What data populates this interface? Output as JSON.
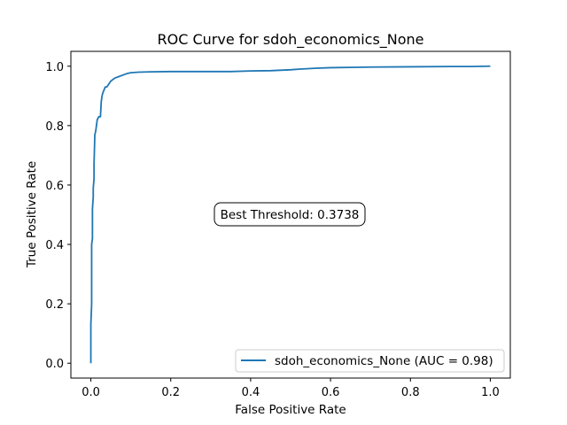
{
  "chart_data": {
    "type": "line",
    "title": "ROC Curve for sdoh_economics_None",
    "xlabel": "False Positive Rate",
    "ylabel": "True Positive Rate",
    "xlim": [
      -0.05,
      1.05
    ],
    "ylim": [
      -0.05,
      1.05
    ],
    "xticks": [
      0.0,
      0.2,
      0.4,
      0.6,
      0.8,
      1.0
    ],
    "yticks": [
      0.0,
      0.2,
      0.4,
      0.6,
      0.8,
      1.0
    ],
    "xtick_labels": [
      "0.0",
      "0.2",
      "0.4",
      "0.6",
      "0.8",
      "1.0"
    ],
    "ytick_labels": [
      "0.0",
      "0.2",
      "0.4",
      "0.6",
      "0.8",
      "1.0"
    ],
    "grid": false,
    "legend_position": "lower-right",
    "colors": {
      "series": "#1f77b4"
    },
    "series": [
      {
        "name": "sdoh_economics_None (AUC = 0.98)",
        "x": [
          0.0,
          0.0,
          0.002,
          0.002,
          0.004,
          0.004,
          0.006,
          0.006,
          0.008,
          0.008,
          0.01,
          0.012,
          0.014,
          0.016,
          0.02,
          0.024,
          0.026,
          0.028,
          0.03,
          0.033,
          0.036,
          0.04,
          0.045,
          0.05,
          0.06,
          0.07,
          0.08,
          0.09,
          0.1,
          0.12,
          0.15,
          0.2,
          0.25,
          0.3,
          0.35,
          0.4,
          0.45,
          0.5,
          0.52,
          0.56,
          0.6,
          0.65,
          0.7,
          0.8,
          0.9,
          0.95,
          1.0
        ],
        "y": [
          0.0,
          0.13,
          0.2,
          0.4,
          0.42,
          0.52,
          0.56,
          0.59,
          0.62,
          0.67,
          0.77,
          0.78,
          0.8,
          0.82,
          0.83,
          0.83,
          0.88,
          0.9,
          0.91,
          0.92,
          0.93,
          0.93,
          0.94,
          0.95,
          0.96,
          0.965,
          0.97,
          0.975,
          0.978,
          0.98,
          0.981,
          0.982,
          0.982,
          0.982,
          0.982,
          0.984,
          0.985,
          0.988,
          0.99,
          0.993,
          0.995,
          0.996,
          0.997,
          0.998,
          0.999,
          0.999,
          1.0
        ]
      }
    ],
    "annotation": "Best Threshold: 0.3738"
  }
}
